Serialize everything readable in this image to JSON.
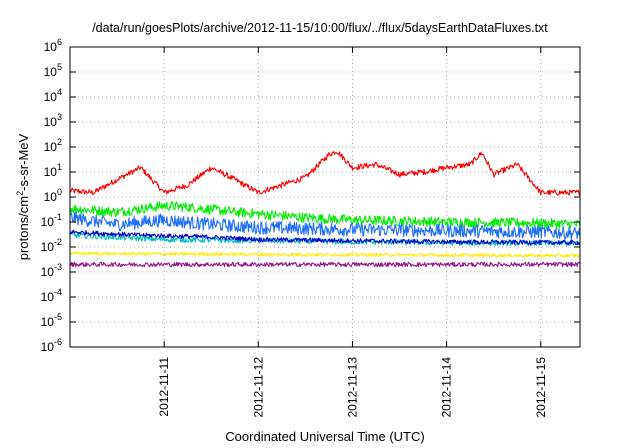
{
  "chart_data": {
    "type": "line",
    "title": "/data/run/goesPlots/archive/2012-11-15/10:00/flux/../flux/5daysEarthDataFluxes.txt",
    "xlabel": "Coordinated Universal Time (UTC)",
    "ylabel": {
      "base": "protons/cm",
      "sup": "2",
      "rest": "-s-sr-MeV"
    },
    "x_scale": "date",
    "xlim": [
      "2012-11-10T00:00",
      "2012-11-15T10:00"
    ],
    "x_ticks": [
      "2012-11-11",
      "2012-11-12",
      "2012-11-13",
      "2012-11-14",
      "2012-11-15"
    ],
    "y_scale": "log",
    "ylim": [
      1e-06,
      1000000.0
    ],
    "y_ticks": [
      {
        "base": "10",
        "exp": "-6",
        "value": 1e-06
      },
      {
        "base": "10",
        "exp": "-5",
        "value": 1e-05
      },
      {
        "base": "10",
        "exp": "-4",
        "value": 0.0001
      },
      {
        "base": "10",
        "exp": "-3",
        "value": 0.001
      },
      {
        "base": "10",
        "exp": "-2",
        "value": 0.01
      },
      {
        "base": "10",
        "exp": "-1",
        "value": 0.1
      },
      {
        "base": "10",
        "exp": "0",
        "value": 1
      },
      {
        "base": "10",
        "exp": "1",
        "value": 10
      },
      {
        "base": "10",
        "exp": "2",
        "value": 100
      },
      {
        "base": "10",
        "exp": "3",
        "value": 1000
      },
      {
        "base": "10",
        "exp": "4",
        "value": 10000
      },
      {
        "base": "10",
        "exp": "5",
        "value": 100000
      },
      {
        "base": "10",
        "exp": "6",
        "value": 1000000
      }
    ],
    "grid": true,
    "series": [
      {
        "color": "#ff0000",
        "noise": 0.05,
        "x": [
          "2012-11-10T00:00",
          "2012-11-10T06:00",
          "2012-11-10T12:00",
          "2012-11-10T18:00",
          "2012-11-11T00:00",
          "2012-11-11T06:00",
          "2012-11-11T12:00",
          "2012-11-11T18:00",
          "2012-11-12T00:00",
          "2012-11-12T06:00",
          "2012-11-12T12:00",
          "2012-11-12T18:00",
          "2012-11-12T20:00",
          "2012-11-13T00:00",
          "2012-11-13T06:00",
          "2012-11-13T12:00",
          "2012-11-13T18:00",
          "2012-11-14T00:00",
          "2012-11-14T06:00",
          "2012-11-14T09:00",
          "2012-11-14T12:00",
          "2012-11-14T18:00",
          "2012-11-15T00:00",
          "2012-11-15T06:00",
          "2012-11-15T10:00"
        ],
        "y": [
          1.8,
          1.5,
          5,
          15,
          1.5,
          3,
          15,
          5,
          1.5,
          3,
          6,
          50,
          70,
          15,
          20,
          8,
          10,
          15,
          20,
          60,
          8,
          20,
          1.5,
          1.5,
          1.5
        ]
      },
      {
        "color": "#00ee00",
        "noise": 0.09,
        "x": [
          "2012-11-10T00:00",
          "2012-11-10T12:00",
          "2012-11-11T00:00",
          "2012-11-11T06:00",
          "2012-11-11T18:00",
          "2012-11-12T12:00",
          "2012-11-13T00:00",
          "2012-11-14T00:00",
          "2012-11-15T00:00",
          "2012-11-15T10:00"
        ],
        "y": [
          0.35,
          0.25,
          0.45,
          0.4,
          0.25,
          0.15,
          0.12,
          0.1,
          0.09,
          0.08
        ]
      },
      {
        "color": "#1f6fff",
        "noise": 0.12,
        "x": [
          "2012-11-10T00:00",
          "2012-11-10T12:00",
          "2012-11-11T00:00",
          "2012-11-11T12:00",
          "2012-11-12T00:00",
          "2012-11-13T00:00",
          "2012-11-14T00:00",
          "2012-11-15T00:00",
          "2012-11-15T10:00"
        ],
        "y": [
          0.15,
          0.08,
          0.12,
          0.08,
          0.06,
          0.05,
          0.045,
          0.04,
          0.035
        ]
      },
      {
        "color": "#00bfbf",
        "noise": 0.05,
        "x": [
          "2012-11-10T00:00",
          "2012-11-11T00:00",
          "2012-11-12T00:00",
          "2012-11-13T00:00",
          "2012-11-14T00:00",
          "2012-11-15T10:00"
        ],
        "y": [
          0.03,
          0.02,
          0.018,
          0.016,
          0.015,
          0.014
        ]
      },
      {
        "color": "#0000cc",
        "noise": 0.04,
        "x": [
          "2012-11-10T00:00",
          "2012-11-10T18:00",
          "2012-11-11T12:00",
          "2012-11-12T00:00",
          "2012-11-13T00:00",
          "2012-11-14T00:00",
          "2012-11-15T10:00"
        ],
        "y": [
          0.04,
          0.03,
          0.025,
          0.02,
          0.018,
          0.016,
          0.015
        ]
      },
      {
        "color": "#ffee00",
        "noise": 0.03,
        "x": [
          "2012-11-10T00:00",
          "2012-11-15T10:00"
        ],
        "y": [
          0.0055,
          0.0045
        ]
      },
      {
        "color": "#8b1a8b",
        "noise": 0.04,
        "x": [
          "2012-11-10T00:00",
          "2012-11-15T10:00"
        ],
        "y": [
          0.002,
          0.002
        ]
      }
    ]
  }
}
